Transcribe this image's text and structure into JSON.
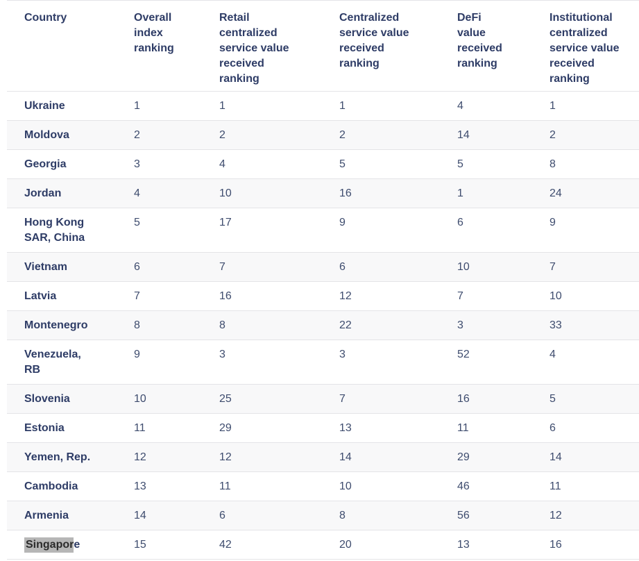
{
  "table": {
    "columns": [
      {
        "label": "Country"
      },
      {
        "label": "Overall\nindex\nranking"
      },
      {
        "label": "Retail\ncentralized\nservice value\nreceived\nranking"
      },
      {
        "label": "Centralized\nservice value\nreceived\nranking"
      },
      {
        "label": "DeFi\nvalue\nreceived\nranking"
      },
      {
        "label": "Institutional\ncentralized\nservice value\nreceived\nranking"
      }
    ],
    "rows": [
      {
        "country": "Ukraine",
        "values": [
          1,
          1,
          1,
          4,
          1
        ]
      },
      {
        "country": "Moldova",
        "values": [
          2,
          2,
          2,
          14,
          2
        ]
      },
      {
        "country": "Georgia",
        "values": [
          3,
          4,
          5,
          5,
          8
        ]
      },
      {
        "country": "Jordan",
        "values": [
          4,
          10,
          16,
          1,
          24
        ]
      },
      {
        "country": "Hong Kong\nSAR, China",
        "values": [
          5,
          17,
          9,
          6,
          9
        ]
      },
      {
        "country": "Vietnam",
        "values": [
          6,
          7,
          6,
          10,
          7
        ]
      },
      {
        "country": "Latvia",
        "values": [
          7,
          16,
          12,
          7,
          10
        ]
      },
      {
        "country": "Montenegro",
        "values": [
          8,
          8,
          22,
          3,
          33
        ]
      },
      {
        "country": "Venezuela,\nRB",
        "values": [
          9,
          3,
          3,
          52,
          4
        ]
      },
      {
        "country": "Slovenia",
        "values": [
          10,
          25,
          7,
          16,
          5
        ]
      },
      {
        "country": "Estonia",
        "values": [
          11,
          29,
          13,
          11,
          6
        ]
      },
      {
        "country": "Yemen, Rep.",
        "values": [
          12,
          12,
          14,
          29,
          14
        ]
      },
      {
        "country": "Cambodia",
        "values": [
          13,
          11,
          10,
          46,
          11
        ]
      },
      {
        "country": "Armenia",
        "values": [
          14,
          6,
          8,
          56,
          12
        ]
      },
      {
        "country": "Singapore",
        "values": [
          15,
          42,
          20,
          13,
          16
        ],
        "highlight": {
          "selected": "Singapor",
          "rest": "e"
        }
      }
    ]
  }
}
